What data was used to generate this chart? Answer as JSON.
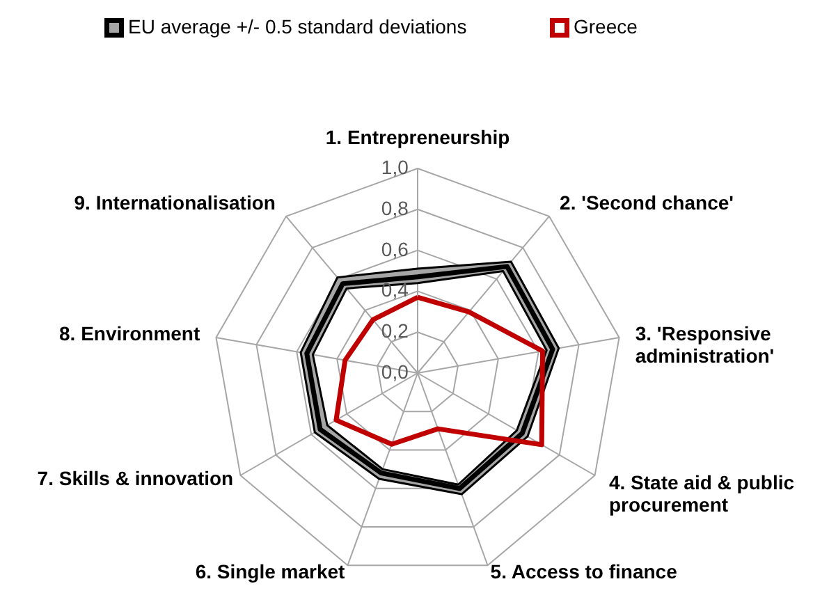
{
  "chart_data": {
    "type": "radar",
    "categories": [
      "1. Entrepreneurship",
      "2. 'Second chance'",
      "3. 'Responsive\nadministration'",
      "4. State aid & public\nprocurement",
      "5. Access to finance",
      "6. Single market",
      "7. Skills & innovation",
      "8. Environment",
      "9. Internationalisation"
    ],
    "ylim": [
      0,
      1
    ],
    "yticks": [
      {
        "value": 0,
        "label": "0,0"
      },
      {
        "value": 0.2,
        "label": "0,2"
      },
      {
        "value": 0.4,
        "label": "0,4"
      },
      {
        "value": 0.6,
        "label": "0,6"
      },
      {
        "value": 0.8,
        "label": "0,8"
      },
      {
        "value": 1,
        "label": "1,0"
      }
    ],
    "grid": true,
    "legend": "top",
    "series": [
      {
        "name": "EU average +/- 0.5 standard deviations",
        "color": "#000000",
        "values": [
          0.47,
          0.68,
          0.67,
          0.59,
          0.6,
          0.52,
          0.55,
          0.55,
          0.57
        ]
      },
      {
        "color": "#000000",
        "values": [
          0.51,
          0.71,
          0.7,
          0.62,
          0.63,
          0.55,
          0.58,
          0.58,
          0.61
        ]
      },
      {
        "color": "#000000",
        "values": [
          0.44,
          0.65,
          0.64,
          0.56,
          0.58,
          0.5,
          0.51,
          0.52,
          0.54
        ]
      },
      {
        "name": "Greece",
        "color": "#c00000",
        "values": [
          0.37,
          0.39,
          0.62,
          0.7,
          0.29,
          0.37,
          0.46,
          0.36,
          0.34
        ]
      }
    ]
  }
}
